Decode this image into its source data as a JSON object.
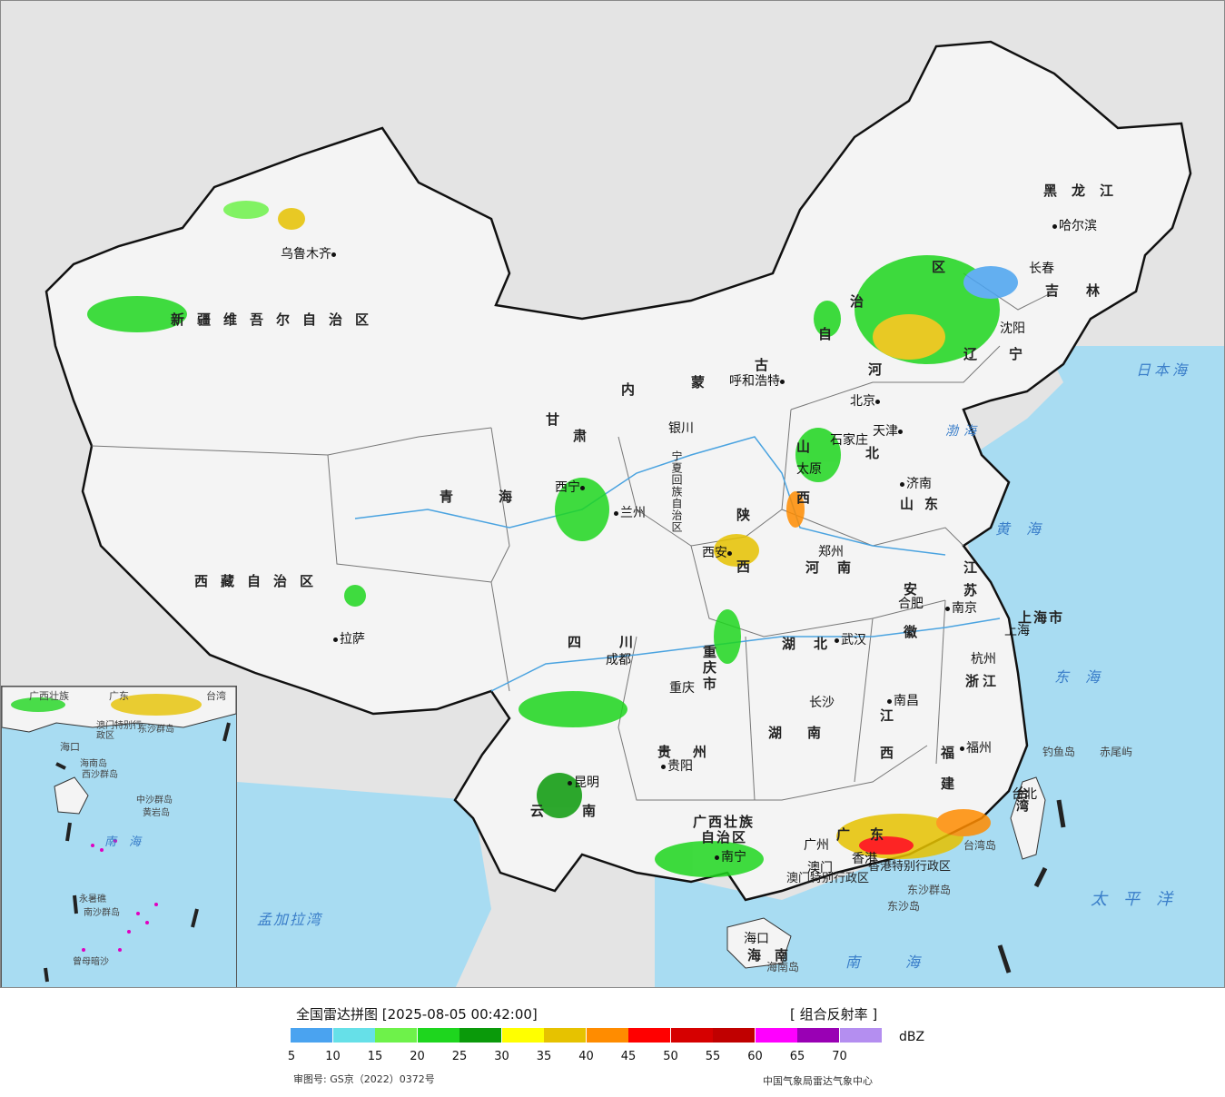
{
  "legend": {
    "title": "全国雷达拼图 [2025-08-05 00:42:00]",
    "product": "[ 组合反射率 ]",
    "unit": "dBZ",
    "colors": [
      "#4aa3f0",
      "#66e0e8",
      "#6ef24a",
      "#1ed61e",
      "#0a9a0a",
      "#ffff00",
      "#e6c200",
      "#ff8c00",
      "#ff0000",
      "#d60000",
      "#c00000",
      "#ff00ff",
      "#9900b4",
      "#b48ef0"
    ],
    "ticks": [
      "5",
      "10",
      "15",
      "20",
      "25",
      "30",
      "35",
      "40",
      "45",
      "50",
      "55",
      "60",
      "65",
      "70"
    ]
  },
  "footer": {
    "approval": "审图号: GS京（2022）0372号",
    "source": "中国气象局雷达气象中心"
  },
  "provinces": {
    "xinjiang": "新疆维吾尔自治区",
    "xizang": "西藏自治区",
    "qinghai": "青海",
    "gansu_1": "甘",
    "gansu_2": "肃",
    "neimenggu_1": "内",
    "neimenggu_2": "蒙",
    "neimenggu_3": "古",
    "neimenggu_4": "自",
    "neimenggu_5": "治",
    "neimenggu_6": "区",
    "heilongjiang": "黑龙江",
    "jilin": "吉林",
    "liaoning_1": "辽",
    "liaoning_2": "宁",
    "hebei_1": "河",
    "hebei_2": "北",
    "shanxi_1": "山",
    "shanxi_2": "西",
    "shaanxi_1": "陕",
    "shaanxi_2": "西",
    "ningxia": "宁夏回族自治区",
    "shandong": "山东",
    "henan": "河南",
    "jiangsu_1": "江",
    "jiangsu_2": "苏",
    "anhui_1": "安",
    "anhui_2": "徽",
    "shanghai": "上海市",
    "zhejiang": "浙江",
    "hubei": "湖北",
    "sichuan": "四川",
    "chongqing_1": "重",
    "chongqing_2": "庆",
    "chongqing_3": "市",
    "hunan_1": "湖",
    "hunan_2": "南",
    "jiangxi_1": "江",
    "jiangxi_2": "西",
    "fujian_1": "福",
    "fujian_2": "建",
    "guizhou": "贵州",
    "yunnan_1": "云",
    "yunnan_2": "南",
    "guangxi_1": "广西壮族",
    "guangxi_2": "自治区",
    "guangdong": "广东",
    "hainan_1": "海",
    "hainan_2": "南",
    "taiwan": "台湾",
    "hk_macau": "香港特别行政区",
    "macau": "澳门特别行政区"
  },
  "cities": {
    "urumqi": "乌鲁木齐",
    "lhasa": "拉萨",
    "xining": "西宁",
    "lanzhou": "兰州",
    "yinchuan": "银川",
    "hohhot": "呼和浩特",
    "beijing": "北京",
    "tianjin": "天津",
    "shijiazhuang": "石家庄",
    "taiyuan": "太原",
    "jinan": "济南",
    "zhengzhou": "郑州",
    "xian": "西安",
    "harbin": "哈尔滨",
    "changchun": "长春",
    "shenyang": "沈阳",
    "hefei": "合肥",
    "nanjing": "南京",
    "shanghai": "上海",
    "hangzhou": "杭州",
    "wuhan": "武汉",
    "chengdu": "成都",
    "chongqing": "重庆",
    "changsha": "长沙",
    "nanchang": "南昌",
    "fuzhou": "福州",
    "guiyang": "贵阳",
    "kunming": "昆明",
    "nanning": "南宁",
    "guangzhou": "广州",
    "hongkong": "香港",
    "macau": "澳门",
    "haikou": "海口",
    "taipei": "台北"
  },
  "seas": {
    "japan_sea": "日本海",
    "bohai": "渤海",
    "yellow_sea": "黄海",
    "east_sea": "东海",
    "south_sea": "南海",
    "pacific": "太平洋",
    "bengal": "孟加拉湾"
  },
  "islands": {
    "diaoyu": "钓鱼岛",
    "chiwei": "赤尾屿",
    "dongsha_islands": "东沙群岛",
    "dongsha": "东沙岛",
    "hainan_island": "海南岛",
    "taiwan_island": "台湾岛"
  },
  "inset": {
    "guangxi": "广西壮族",
    "guangdong": "广东",
    "taiwan": "台湾",
    "macau": "澳门特别行政区",
    "dongsha": "东沙群岛",
    "haikou": "海口",
    "hainan": "海南岛",
    "xisha": "西沙群岛",
    "zhongsha": "中沙群岛",
    "huangyan": "黄岩岛",
    "nansha": "南沙群岛",
    "south_sea": "南海",
    "zengmu": "曾母暗沙",
    "yongshu": "永暑礁"
  }
}
